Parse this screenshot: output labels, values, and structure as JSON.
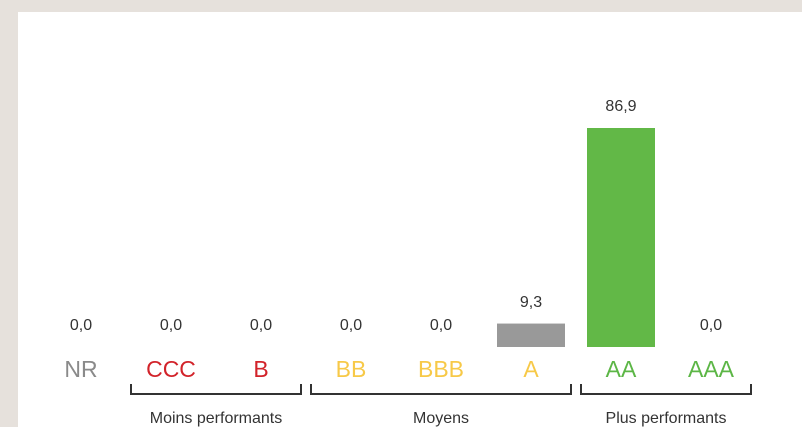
{
  "chart_data": {
    "type": "bar",
    "categories": [
      "NR",
      "CCC",
      "B",
      "BB",
      "BBB",
      "A",
      "AA",
      "AAA"
    ],
    "values": [
      0.0,
      0.0,
      0.0,
      0.0,
      0.0,
      9.3,
      86.9,
      0.0
    ],
    "value_labels": [
      "0,0",
      "0,0",
      "0,0",
      "0,0",
      "0,0",
      "9,3",
      "86,9",
      "0,0"
    ],
    "bar_colors": [
      "#999999",
      "#999999",
      "#999999",
      "#999999",
      "#999999",
      "#999999",
      "#62b847",
      "#62b847"
    ],
    "category_colors": [
      "#8a8a8a",
      "#d2232a",
      "#d2232a",
      "#f7c948",
      "#f7c948",
      "#f7c948",
      "#5cb646",
      "#5cb646"
    ],
    "groups": [
      {
        "name": "Moins performants",
        "categories": [
          "CCC",
          "B"
        ]
      },
      {
        "name": "Moyens",
        "categories": [
          "BB",
          "BBB",
          "A"
        ]
      },
      {
        "name": "Plus performants",
        "categories": [
          "AA",
          "AAA"
        ]
      }
    ]
  }
}
